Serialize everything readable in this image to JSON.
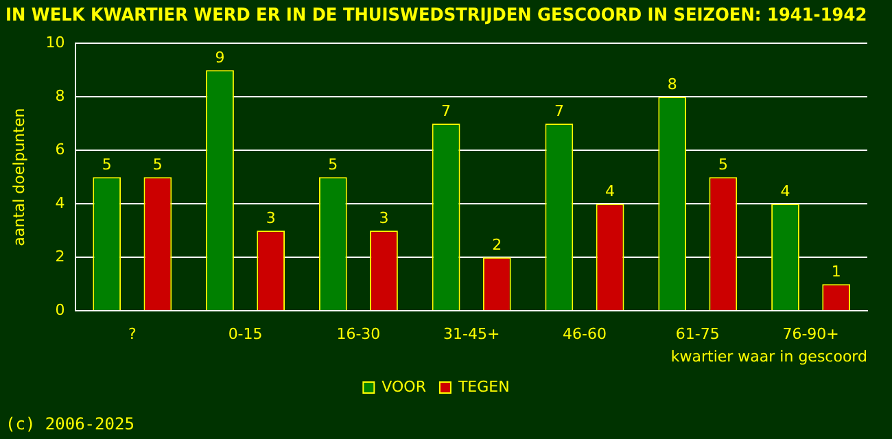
{
  "chart_data": {
    "type": "bar",
    "title": "IN WELK KWARTIER WERD ER IN DE THUISWEDSTRIJDEN GESCOORD IN SEIZOEN: 1941-1942",
    "xlabel": "kwartier waar in gescoord",
    "ylabel": "aantal doelpunten",
    "categories": [
      "?",
      "0-15",
      "16-30",
      "31-45+",
      "46-60",
      "61-75",
      "76-90+"
    ],
    "series": [
      {
        "name": "VOOR",
        "color": "#008000",
        "values": [
          5,
          9,
          5,
          7,
          7,
          8,
          4
        ]
      },
      {
        "name": "TEGEN",
        "color": "#cc0000",
        "values": [
          5,
          3,
          3,
          2,
          4,
          5,
          1
        ]
      }
    ],
    "ylim": [
      0,
      10
    ],
    "yticks": [
      0,
      2,
      4,
      6,
      8,
      10
    ],
    "grid": "y",
    "legend": "bottom",
    "data_labels": true,
    "annotations": [
      "(c) 2006-2025"
    ]
  }
}
